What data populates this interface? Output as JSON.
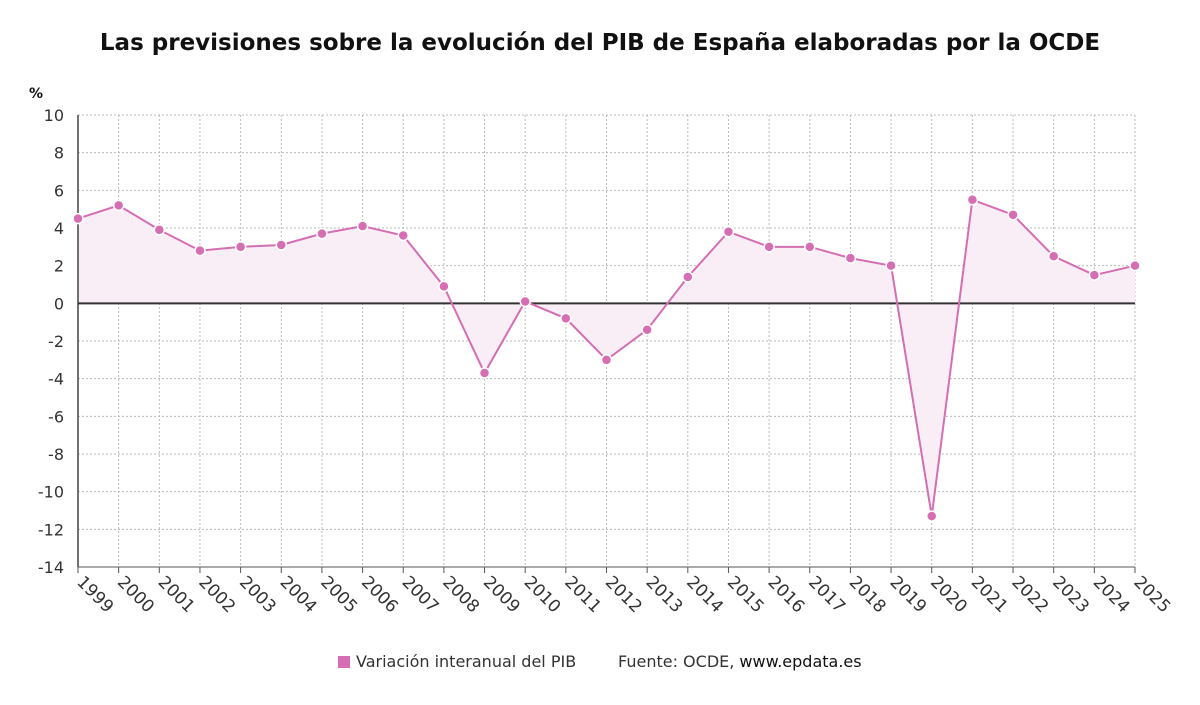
{
  "title": "Las previsiones sobre la evolución del PIB de España elaboradas por la OCDE",
  "unit_label": "%",
  "legend": {
    "label": "Variación interanual del PIB",
    "color": "#d56eb2"
  },
  "source": {
    "prefix": "Fuente: OCDE, ",
    "site": "www.epdata.es"
  },
  "colors": {
    "line": "#d56eb2",
    "fill": "#f9eef5",
    "zero_line": "#333333",
    "grid": "#bbbbbb"
  },
  "chart_data": {
    "type": "line",
    "title": "Las previsiones sobre la evolución del PIB de España elaboradas por la OCDE",
    "xlabel": "",
    "ylabel": "%",
    "ylim": [
      -14,
      10
    ],
    "yticks": [
      10,
      8,
      6,
      4,
      2,
      0,
      -2,
      -4,
      -6,
      -8,
      -10,
      -12,
      -14
    ],
    "grid": true,
    "legend_position": "bottom",
    "categories": [
      "1999",
      "2000",
      "2001",
      "2002",
      "2003",
      "2004",
      "2005",
      "2006",
      "2007",
      "2008",
      "2009",
      "2010",
      "2011",
      "2012",
      "2013",
      "2014",
      "2015",
      "2016",
      "2017",
      "2018",
      "2019",
      "2020",
      "2021",
      "2022",
      "2023",
      "2024",
      "2025"
    ],
    "series": [
      {
        "name": "Variación interanual del PIB",
        "values": [
          4.5,
          5.2,
          3.9,
          2.8,
          3.0,
          3.1,
          3.7,
          4.1,
          3.6,
          0.9,
          -3.7,
          0.1,
          -0.8,
          -3.0,
          -1.4,
          1.4,
          3.8,
          3.0,
          3.0,
          2.4,
          2.0,
          -11.3,
          5.5,
          4.7,
          2.5,
          1.5,
          2.0
        ]
      }
    ]
  }
}
